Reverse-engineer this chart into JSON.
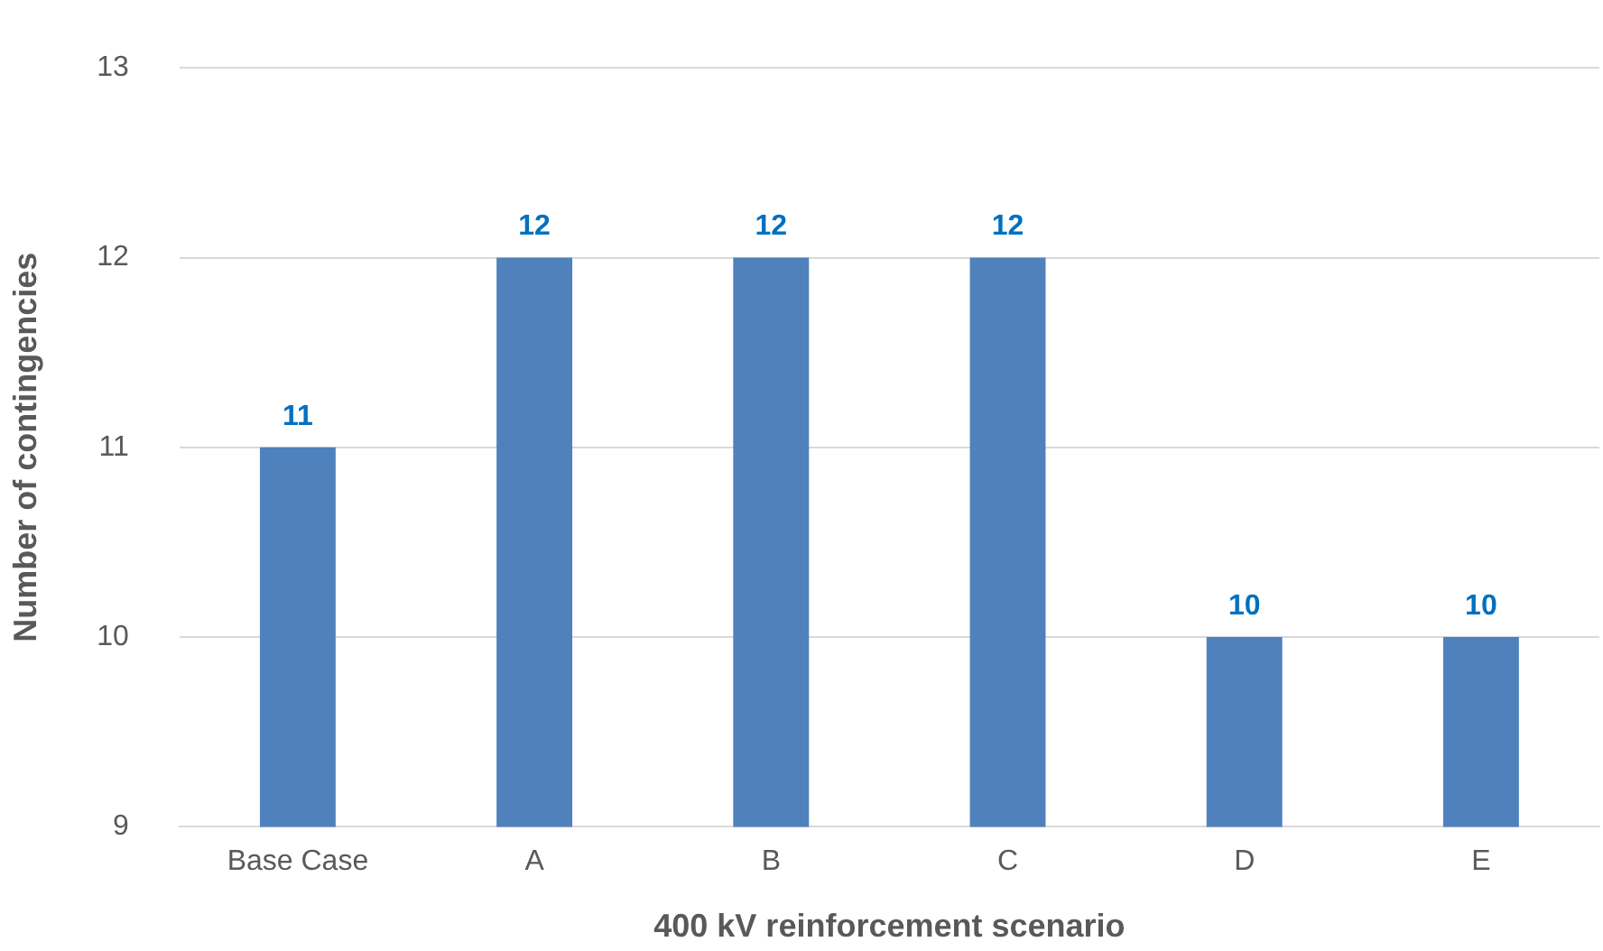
{
  "chart_data": {
    "type": "bar",
    "xlabel": "400 kV reinforcement scenario",
    "ylabel": "Number of contingencies",
    "categories": [
      "Base Case",
      "A",
      "B",
      "C",
      "D",
      "E"
    ],
    "values": [
      11,
      12,
      12,
      12,
      10,
      10
    ],
    "color": "#4f81bd",
    "ylim": [
      9,
      13
    ],
    "yticks": [
      9,
      10,
      11,
      12,
      13
    ],
    "grid": "y",
    "data_labels": true
  }
}
